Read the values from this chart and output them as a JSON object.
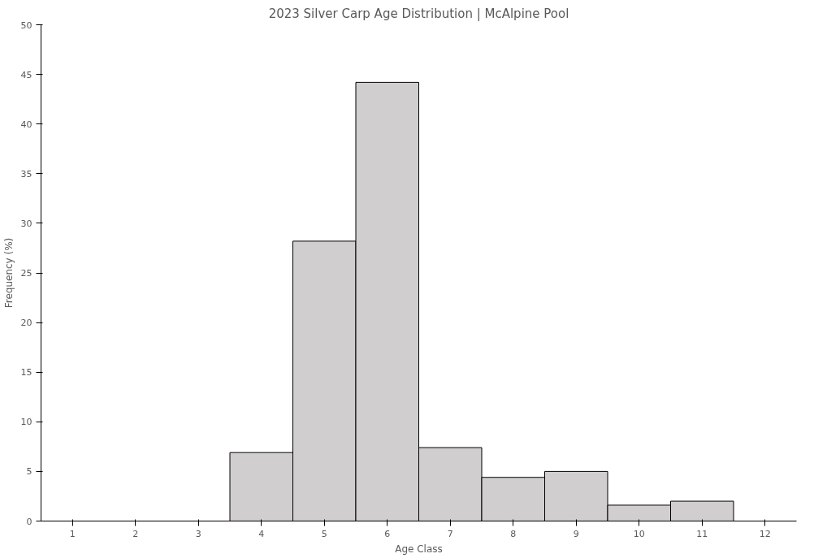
{
  "chart_data": {
    "type": "bar",
    "title": "2023 Silver Carp Age Distribution | McAlpine Pool",
    "xlabel": "Age Class",
    "ylabel": "Frequency (%)",
    "categories": [
      "1",
      "2",
      "3",
      "4",
      "5",
      "6",
      "7",
      "8",
      "9",
      "10",
      "11",
      "12"
    ],
    "values": [
      0,
      0,
      0,
      6.9,
      28.2,
      44.2,
      7.4,
      4.4,
      5.0,
      1.6,
      2.0,
      0
    ],
    "color": "#d0cece",
    "ylim": [
      0,
      50
    ],
    "yticks": [
      0,
      5,
      10,
      15,
      20,
      25,
      30,
      35,
      40,
      45,
      50
    ],
    "grid": false
  }
}
